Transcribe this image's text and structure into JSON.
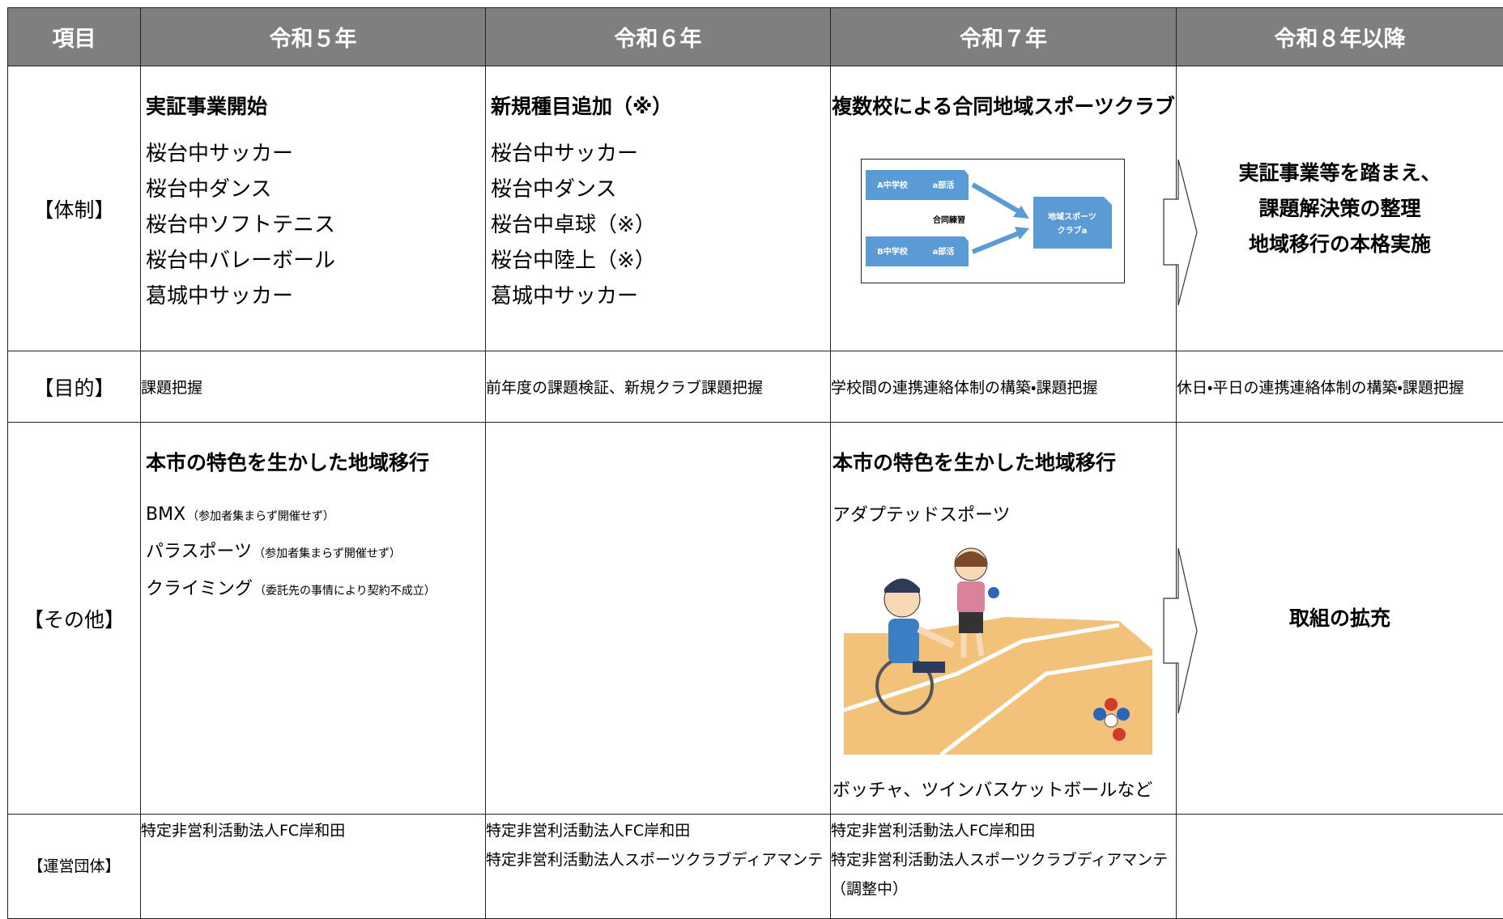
{
  "header": {
    "columns": [
      "項目",
      "令和５年",
      "令和６年",
      "令和７年",
      "令和８年以降"
    ]
  },
  "rows": [
    {
      "label": "【体制】",
      "reiwa5": {
        "heading": "実証事業開始",
        "items": [
          "桜台中サッカー",
          "桜台中ダンス",
          "桜台中ソフトテニス",
          "桜台中バレーボール",
          "葛城中サッカー"
        ]
      },
      "reiwa6": {
        "heading": "新規種目追加（※）",
        "items": [
          "桜台中サッカー",
          "桜台中ダンス",
          "桜台中卓球（※）",
          "桜台中陸上（※）",
          "葛城中サッカー"
        ]
      },
      "reiwa7": {
        "heading": "複数校による合同地域スポーツクラブ",
        "diagram": {
          "school_a": "A中学校",
          "club_a": "a部活",
          "practice": "合同練習",
          "school_b": "B中学校",
          "club_b": "a部活",
          "sports_club": [
            "地域スポーツ",
            "クラブa"
          ]
        }
      },
      "reiwa8": {
        "lines": [
          "実証事業等を踏まえ、",
          "課題解決策の整理",
          "地域移行の本格実施"
        ]
      }
    },
    {
      "label": "【目的】",
      "reiwa5": {
        "text": "課題把握"
      },
      "reiwa6": {
        "text": "前年度の課題検証、新規クラブ課題把握"
      },
      "reiwa7": {
        "text": "学校間の連携連絡体制の構築・課題把握"
      },
      "reiwa8": {
        "text": "休日・平日の連携連絡体制の構築・課題把握"
      }
    },
    {
      "label": "【その他】",
      "reiwa5": {
        "heading": "本市の特色を生かした地域移行",
        "items": [
          {
            "text": "BMX",
            "note": "（参加者集まらず開催せず）"
          },
          {
            "text": "パラスポーツ",
            "note": "（参加者集まらず開催せず）"
          },
          {
            "text": "クライミング",
            "note": "（委託先の事情により契約不成立）"
          }
        ]
      },
      "reiwa7": {
        "heading": "本市の特色を生かした地域移行",
        "subheading": "アダプテッドスポーツ",
        "caption": "ボッチャ、ツインバスケットボールなど"
      },
      "reiwa8": {
        "text": "取組の拡充"
      }
    },
    {
      "label": "【運営団体】",
      "reiwa5": {
        "lines": [
          "特定非営利活動法人FC岸和田"
        ]
      },
      "reiwa6": {
        "lines": [
          "特定非営利活動法人FC岸和田",
          "特定非営利活動法人スポーツクラブディアマンテ"
        ]
      },
      "reiwa7": {
        "lines": [
          "特定非営利活動法人FC岸和田",
          "特定非営利活動法人スポーツクラブディアマンテ",
          "（調整中）"
        ]
      }
    }
  ]
}
